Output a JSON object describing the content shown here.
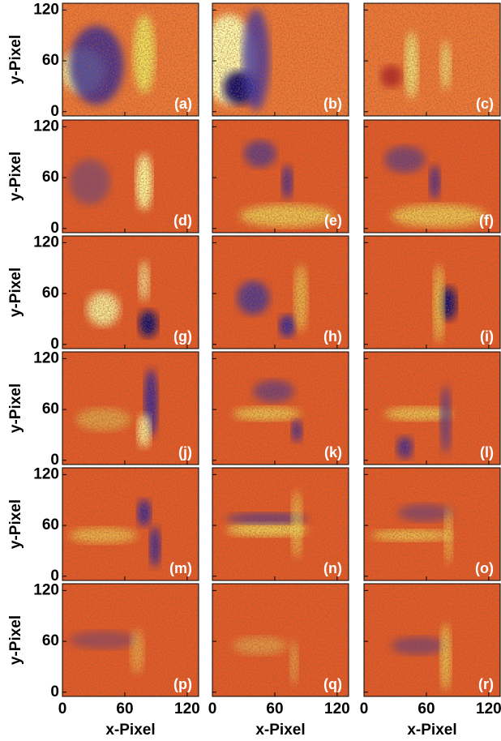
{
  "y_label": "y-Pixel",
  "x_label": "x-Pixel",
  "xlim": [
    0,
    131
  ],
  "ylim": [
    -5,
    128
  ],
  "xticks": [
    0,
    60,
    120
  ],
  "yticks": [
    0,
    60,
    120
  ],
  "panels": [
    {
      "label": "(a)"
    },
    {
      "label": "(b)"
    },
    {
      "label": "(c)"
    },
    {
      "label": "(d)"
    },
    {
      "label": "(e)"
    },
    {
      "label": "(f)"
    },
    {
      "label": "(g)"
    },
    {
      "label": "(h)"
    },
    {
      "label": "(i)"
    },
    {
      "label": "(j)"
    },
    {
      "label": "(k)"
    },
    {
      "label": "(l)"
    },
    {
      "label": "(m)"
    },
    {
      "label": "(n)"
    },
    {
      "label": "(o)"
    },
    {
      "label": "(p)"
    },
    {
      "label": "(q)"
    },
    {
      "label": "(r)"
    }
  ]
}
